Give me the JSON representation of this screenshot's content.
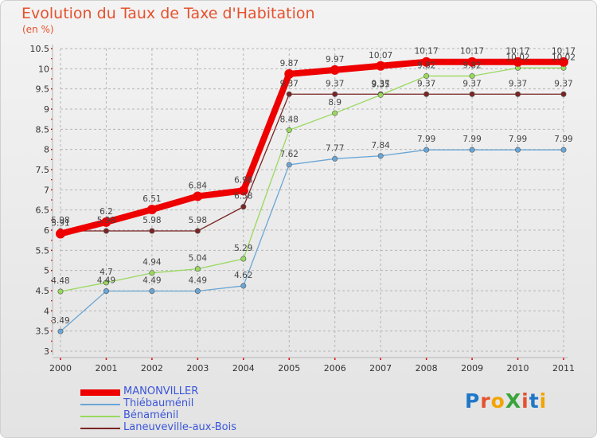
{
  "title": "Evolution du Taux de Taxe d'Habitation",
  "subtitle": "(en %)",
  "brand": {
    "text": "ProXiti",
    "letter_colors": [
      "#1f77c7",
      "#e5512d",
      "#f2a400",
      "#3aa43a",
      "#e5512d",
      "#1f77c7",
      "#f2a400"
    ]
  },
  "colors": {
    "title": "#e5512d",
    "grid": "#b5b5b5",
    "axis_tick": "#e00000"
  },
  "chart_data": {
    "type": "line",
    "x": [
      "2000",
      "2001",
      "2002",
      "2003",
      "2004",
      "2005",
      "2006",
      "2007",
      "2008",
      "2009",
      "2010",
      "2011"
    ],
    "ylim": [
      3,
      10.5
    ],
    "y_ticks": [
      "3",
      "3.5",
      "4",
      "4.5",
      "5",
      "5.5",
      "6",
      "6.5",
      "7",
      "7.5",
      "8",
      "8.5",
      "9",
      "9.5",
      "10",
      "10.5"
    ],
    "title": "Evolution du Taux de Taxe d'Habitation",
    "ylabel": "(en %)",
    "xlabel": "",
    "grid": true,
    "legend_position": "bottom-left",
    "series": [
      {
        "name": "MANONVILLER",
        "color": "#ee0000",
        "line_width": 8,
        "marker_radius": 6,
        "values": [
          5.91,
          6.2,
          6.51,
          6.84,
          6.98,
          9.87,
          9.97,
          10.07,
          10.17,
          10.17,
          10.17,
          10.17
        ],
        "labels": [
          "5.91",
          "6.2",
          "6.51",
          "6.84",
          "6.98",
          "9.87",
          "9.97",
          "10.07",
          "10.17",
          "10.17",
          "10.17",
          "10.17"
        ]
      },
      {
        "name": "Thiébauménil",
        "color": "#6aa6d5",
        "line_width": 1.3,
        "marker_radius": 3.2,
        "values": [
          3.49,
          4.49,
          4.49,
          4.49,
          4.62,
          7.62,
          7.77,
          7.84,
          7.99,
          7.99,
          7.99,
          7.99
        ],
        "labels": [
          "3.49",
          "4.49",
          "4.49",
          "4.49",
          "4.62",
          "7.62",
          "7.77",
          "7.84",
          "7.99",
          "7.99",
          "7.99",
          "7.99"
        ]
      },
      {
        "name": "Bénaménil",
        "color": "#99d95e",
        "line_width": 1.3,
        "marker_radius": 3.2,
        "values": [
          4.48,
          4.7,
          4.94,
          5.04,
          5.29,
          8.48,
          8.9,
          9.35,
          9.82,
          9.82,
          10.02,
          10.02
        ],
        "labels": [
          "4.48",
          "4.7",
          "4.94",
          "5.04",
          "5.29",
          "8.48",
          "8.9",
          "9.35",
          "9.82",
          "9.82",
          "10.02",
          "10.02"
        ]
      },
      {
        "name": "Laneuveville-aux-Bois",
        "color": "#7a2424",
        "line_width": 1.3,
        "marker_radius": 3.2,
        "values": [
          5.98,
          5.98,
          5.98,
          5.98,
          6.58,
          9.37,
          9.37,
          9.37,
          9.37,
          9.37,
          9.37,
          9.37
        ],
        "labels": [
          "5.98",
          "5.98",
          "5.98",
          "5.98",
          "6.58",
          "9.37",
          "9.37",
          "9.37",
          "9.37",
          "9.37",
          "9.37",
          "9.37"
        ]
      }
    ]
  }
}
